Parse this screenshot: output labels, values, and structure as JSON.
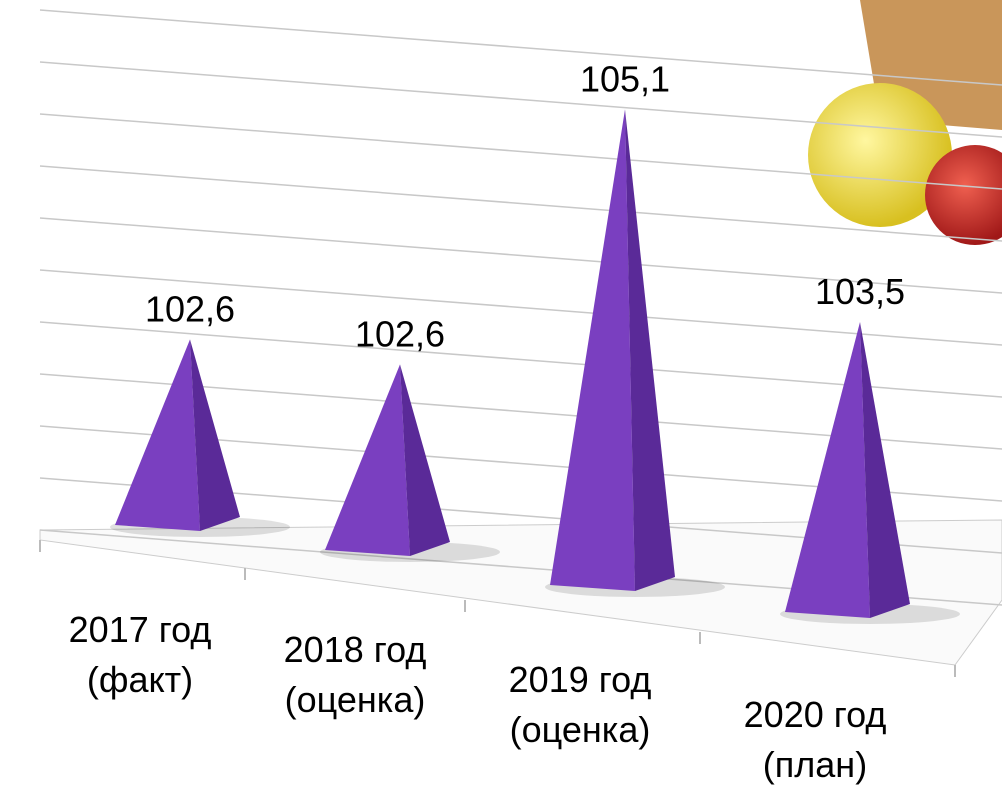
{
  "chart_data": {
    "type": "pyramid",
    "categories": [
      "2017 год (факт)",
      "2018 год (оценка)",
      "2019 год (оценка)",
      "2020 год (план)"
    ],
    "values": [
      102.6,
      102.6,
      105.1,
      103.5
    ],
    "value_labels": [
      "102,6",
      "102,6",
      "105,1",
      "103,5"
    ],
    "color": "#7a3fc0",
    "ylim": [
      101,
      106
    ],
    "yticks": [
      101,
      101.5,
      102,
      102.5,
      103,
      103.5,
      104,
      104.5,
      105,
      105.5,
      106
    ],
    "grid": true
  }
}
